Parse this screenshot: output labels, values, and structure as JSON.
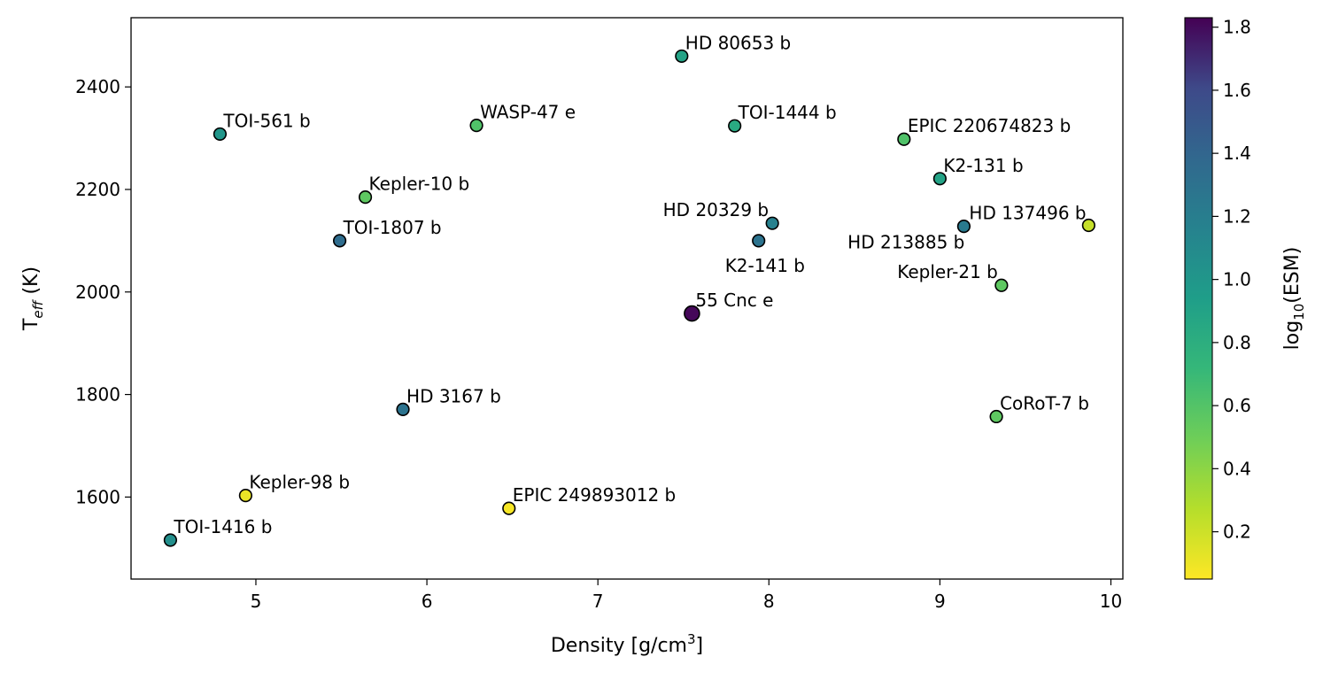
{
  "chart_data": {
    "type": "scatter",
    "xlabel": "Density [g/cm",
    "xlabel_sup": "3",
    "xlabel_end": "]",
    "ylabel": "T",
    "ylabel_sub": "eff",
    "ylabel_end": " (K)",
    "xlim": [
      4.27,
      10.07
    ],
    "ylim": [
      1440,
      2535
    ],
    "xticks": [
      5,
      6,
      7,
      8,
      9,
      10
    ],
    "yticks": [
      1600,
      1800,
      2000,
      2200,
      2400
    ],
    "grid": false,
    "colorbar": {
      "label": "log",
      "label_sub": "10",
      "label_end": "(ESM)",
      "range": [
        0.05,
        1.83
      ],
      "ticks": [
        0.2,
        0.4,
        0.6,
        0.8,
        1.0,
        1.2,
        1.4,
        1.6,
        1.8
      ],
      "tick_labels": [
        "0.2",
        "0.4",
        "0.6",
        "0.8",
        "1.0",
        "1.2",
        "1.4",
        "1.6",
        "1.8"
      ],
      "colormap": "viridis_r"
    },
    "points": [
      {
        "name": "HD 80653 b",
        "x": 7.49,
        "y": 2460,
        "esm": 0.8
      },
      {
        "name": "TOI-561 b",
        "x": 4.79,
        "y": 2308,
        "esm": 0.9
      },
      {
        "name": "WASP-47 e",
        "x": 6.29,
        "y": 2325,
        "esm": 0.55
      },
      {
        "name": "TOI-1444 b",
        "x": 7.8,
        "y": 2324,
        "esm": 0.75
      },
      {
        "name": "EPIC 220674823 b",
        "x": 8.79,
        "y": 2298,
        "esm": 0.55
      },
      {
        "name": "K2-131 b",
        "x": 9.0,
        "y": 2221,
        "esm": 0.8
      },
      {
        "name": "Kepler-10 b",
        "x": 5.64,
        "y": 2185,
        "esm": 0.5
      },
      {
        "name": "HD 20329 b",
        "x": 8.02,
        "y": 2134,
        "esm": 1.05
      },
      {
        "name": "HD 137496 b",
        "x": 9.14,
        "y": 2128,
        "esm": 1.1
      },
      {
        "name": "TOI-1807 b",
        "x": 5.49,
        "y": 2100,
        "esm": 1.2
      },
      {
        "name": "K2-141 b",
        "x": 7.94,
        "y": 2100,
        "esm": 1.15
      },
      {
        "name": "HD 213885 b",
        "x": 9.87,
        "y": 2130,
        "esm": 0.2
      },
      {
        "name": "Kepler-21 b",
        "x": 9.36,
        "y": 2013,
        "esm": 0.5
      },
      {
        "name": "55 Cnc e",
        "x": 7.55,
        "y": 1958,
        "esm": 1.8
      },
      {
        "name": "HD 3167 b",
        "x": 5.86,
        "y": 1771,
        "esm": 1.15
      },
      {
        "name": "CoRoT-7 b",
        "x": 9.33,
        "y": 1757,
        "esm": 0.5
      },
      {
        "name": "Kepler-98 b",
        "x": 4.94,
        "y": 1603,
        "esm": 0.1
      },
      {
        "name": "EPIC 249893012 b",
        "x": 6.48,
        "y": 1578,
        "esm": 0.07
      },
      {
        "name": "TOI-1416 b",
        "x": 4.5,
        "y": 1516,
        "esm": 0.95
      }
    ]
  }
}
